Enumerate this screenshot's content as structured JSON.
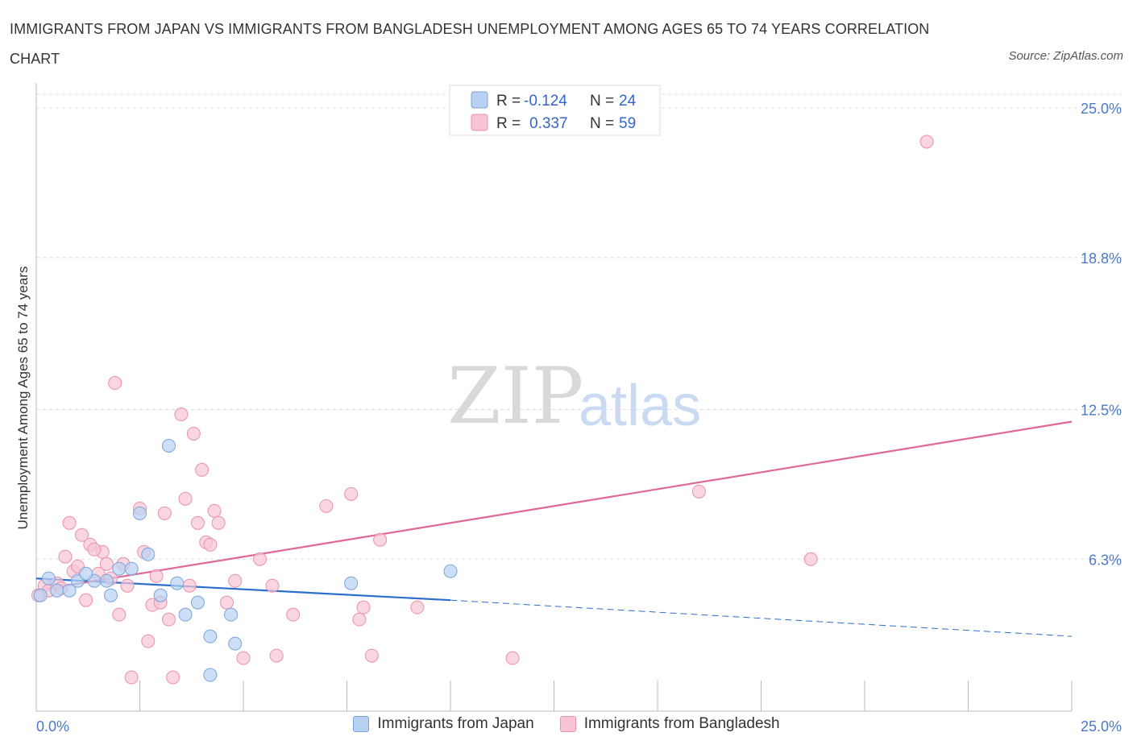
{
  "title": "IMMIGRANTS FROM JAPAN VS IMMIGRANTS FROM BANGLADESH UNEMPLOYMENT AMONG AGES 65 TO 74 YEARS CORRELATION CHART",
  "source": "Source: ZipAtlas.com",
  "watermark": {
    "zip": "ZIP",
    "atlas": "atlas"
  },
  "colors": {
    "japan_fill": "#b8d1f3",
    "japan_stroke": "#7aa3dc",
    "japan_line": "#2a6fc9",
    "bangladesh_fill": "#f8c4d4",
    "bangladesh_stroke": "#ec8fad",
    "bangladesh_line": "#e0679a",
    "grid": "#dddddd",
    "tick_text": "#4a7ac8"
  },
  "legend": {
    "rows": [
      {
        "r_label": "R =",
        "r_value": "-0.124",
        "n_label": "N =",
        "n_value": "24"
      },
      {
        "r_label": "R =",
        "r_value": "0.337",
        "n_label": "N =",
        "n_value": "59"
      }
    ]
  },
  "chart_data": {
    "type": "scatter",
    "title": "IMMIGRANTS FROM JAPAN VS IMMIGRANTS FROM BANGLADESH UNEMPLOYMENT AMONG AGES 65 TO 74 YEARS CORRELATION CHART",
    "xlabel": "",
    "ylabel": "Unemployment Among Ages 65 to 74 years",
    "xlim": [
      0,
      25
    ],
    "ylim": [
      0,
      25
    ],
    "x_tick_labels": [
      "0.0%",
      "25.0%"
    ],
    "y_ticks": [
      6.3,
      12.5,
      18.8,
      25.0
    ],
    "y_tick_labels": [
      "6.3%",
      "12.5%",
      "18.8%",
      "25.0%"
    ],
    "grid": true,
    "legend_position": "bottom",
    "series": [
      {
        "name": "Immigrants from Japan",
        "R": -0.124,
        "N": 24,
        "trend": {
          "x0": 0,
          "y0": 5.5,
          "x_solid_end": 10.0,
          "y_solid_end": 4.6,
          "x1": 25,
          "y1": 3.1
        },
        "points": [
          {
            "x": 0.1,
            "y": 4.8
          },
          {
            "x": 0.3,
            "y": 5.5
          },
          {
            "x": 0.5,
            "y": 5.0
          },
          {
            "x": 0.8,
            "y": 5.0
          },
          {
            "x": 1.0,
            "y": 5.4
          },
          {
            "x": 1.4,
            "y": 5.4
          },
          {
            "x": 1.7,
            "y": 5.4
          },
          {
            "x": 1.8,
            "y": 4.8
          },
          {
            "x": 2.0,
            "y": 5.9
          },
          {
            "x": 2.3,
            "y": 5.9
          },
          {
            "x": 2.5,
            "y": 8.2
          },
          {
            "x": 2.7,
            "y": 6.5
          },
          {
            "x": 3.0,
            "y": 4.8
          },
          {
            "x": 3.2,
            "y": 11.0
          },
          {
            "x": 3.4,
            "y": 5.3
          },
          {
            "x": 3.6,
            "y": 4.0
          },
          {
            "x": 3.9,
            "y": 4.5
          },
          {
            "x": 4.2,
            "y": 3.1
          },
          {
            "x": 4.2,
            "y": 1.5
          },
          {
            "x": 4.7,
            "y": 4.0
          },
          {
            "x": 4.8,
            "y": 2.8
          },
          {
            "x": 7.6,
            "y": 5.3
          },
          {
            "x": 10.0,
            "y": 5.8
          },
          {
            "x": 1.2,
            "y": 5.7
          }
        ]
      },
      {
        "name": "Immigrants from Bangladesh",
        "R": 0.337,
        "N": 59,
        "trend": {
          "x0": 0,
          "y0": 5.0,
          "x1": 25,
          "y1": 12.0
        },
        "points": [
          {
            "x": 0.05,
            "y": 4.8
          },
          {
            "x": 0.2,
            "y": 5.2
          },
          {
            "x": 0.3,
            "y": 5.0
          },
          {
            "x": 0.5,
            "y": 5.3
          },
          {
            "x": 0.6,
            "y": 5.1
          },
          {
            "x": 0.7,
            "y": 6.4
          },
          {
            "x": 0.8,
            "y": 7.8
          },
          {
            "x": 0.9,
            "y": 5.8
          },
          {
            "x": 1.0,
            "y": 6.0
          },
          {
            "x": 1.1,
            "y": 7.3
          },
          {
            "x": 1.2,
            "y": 4.6
          },
          {
            "x": 1.3,
            "y": 6.9
          },
          {
            "x": 1.5,
            "y": 5.7
          },
          {
            "x": 1.6,
            "y": 6.6
          },
          {
            "x": 1.7,
            "y": 6.1
          },
          {
            "x": 1.8,
            "y": 5.5
          },
          {
            "x": 1.9,
            "y": 13.6
          },
          {
            "x": 2.0,
            "y": 4.0
          },
          {
            "x": 2.1,
            "y": 6.1
          },
          {
            "x": 2.2,
            "y": 5.2
          },
          {
            "x": 2.3,
            "y": 1.4
          },
          {
            "x": 2.5,
            "y": 8.4
          },
          {
            "x": 2.6,
            "y": 6.6
          },
          {
            "x": 2.7,
            "y": 2.9
          },
          {
            "x": 2.8,
            "y": 4.4
          },
          {
            "x": 2.9,
            "y": 5.6
          },
          {
            "x": 3.0,
            "y": 4.5
          },
          {
            "x": 3.1,
            "y": 8.2
          },
          {
            "x": 3.2,
            "y": 3.8
          },
          {
            "x": 3.3,
            "y": 1.4
          },
          {
            "x": 3.5,
            "y": 12.3
          },
          {
            "x": 3.6,
            "y": 8.8
          },
          {
            "x": 3.7,
            "y": 5.2
          },
          {
            "x": 3.8,
            "y": 11.5
          },
          {
            "x": 3.9,
            "y": 7.8
          },
          {
            "x": 4.0,
            "y": 10.0
          },
          {
            "x": 4.1,
            "y": 7.0
          },
          {
            "x": 4.2,
            "y": 6.9
          },
          {
            "x": 4.3,
            "y": 8.3
          },
          {
            "x": 4.4,
            "y": 7.8
          },
          {
            "x": 4.6,
            "y": 4.5
          },
          {
            "x": 4.8,
            "y": 5.4
          },
          {
            "x": 5.0,
            "y": 2.2
          },
          {
            "x": 5.4,
            "y": 6.3
          },
          {
            "x": 5.7,
            "y": 5.2
          },
          {
            "x": 5.8,
            "y": 2.3
          },
          {
            "x": 6.2,
            "y": 4.0
          },
          {
            "x": 7.0,
            "y": 8.5
          },
          {
            "x": 7.6,
            "y": 9.0
          },
          {
            "x": 7.8,
            "y": 3.8
          },
          {
            "x": 7.9,
            "y": 4.3
          },
          {
            "x": 8.1,
            "y": 2.3
          },
          {
            "x": 8.3,
            "y": 7.1
          },
          {
            "x": 9.2,
            "y": 4.3
          },
          {
            "x": 11.5,
            "y": 2.2
          },
          {
            "x": 16.0,
            "y": 9.1
          },
          {
            "x": 18.7,
            "y": 6.3
          },
          {
            "x": 21.5,
            "y": 23.6
          },
          {
            "x": 1.4,
            "y": 6.7
          }
        ]
      }
    ]
  }
}
